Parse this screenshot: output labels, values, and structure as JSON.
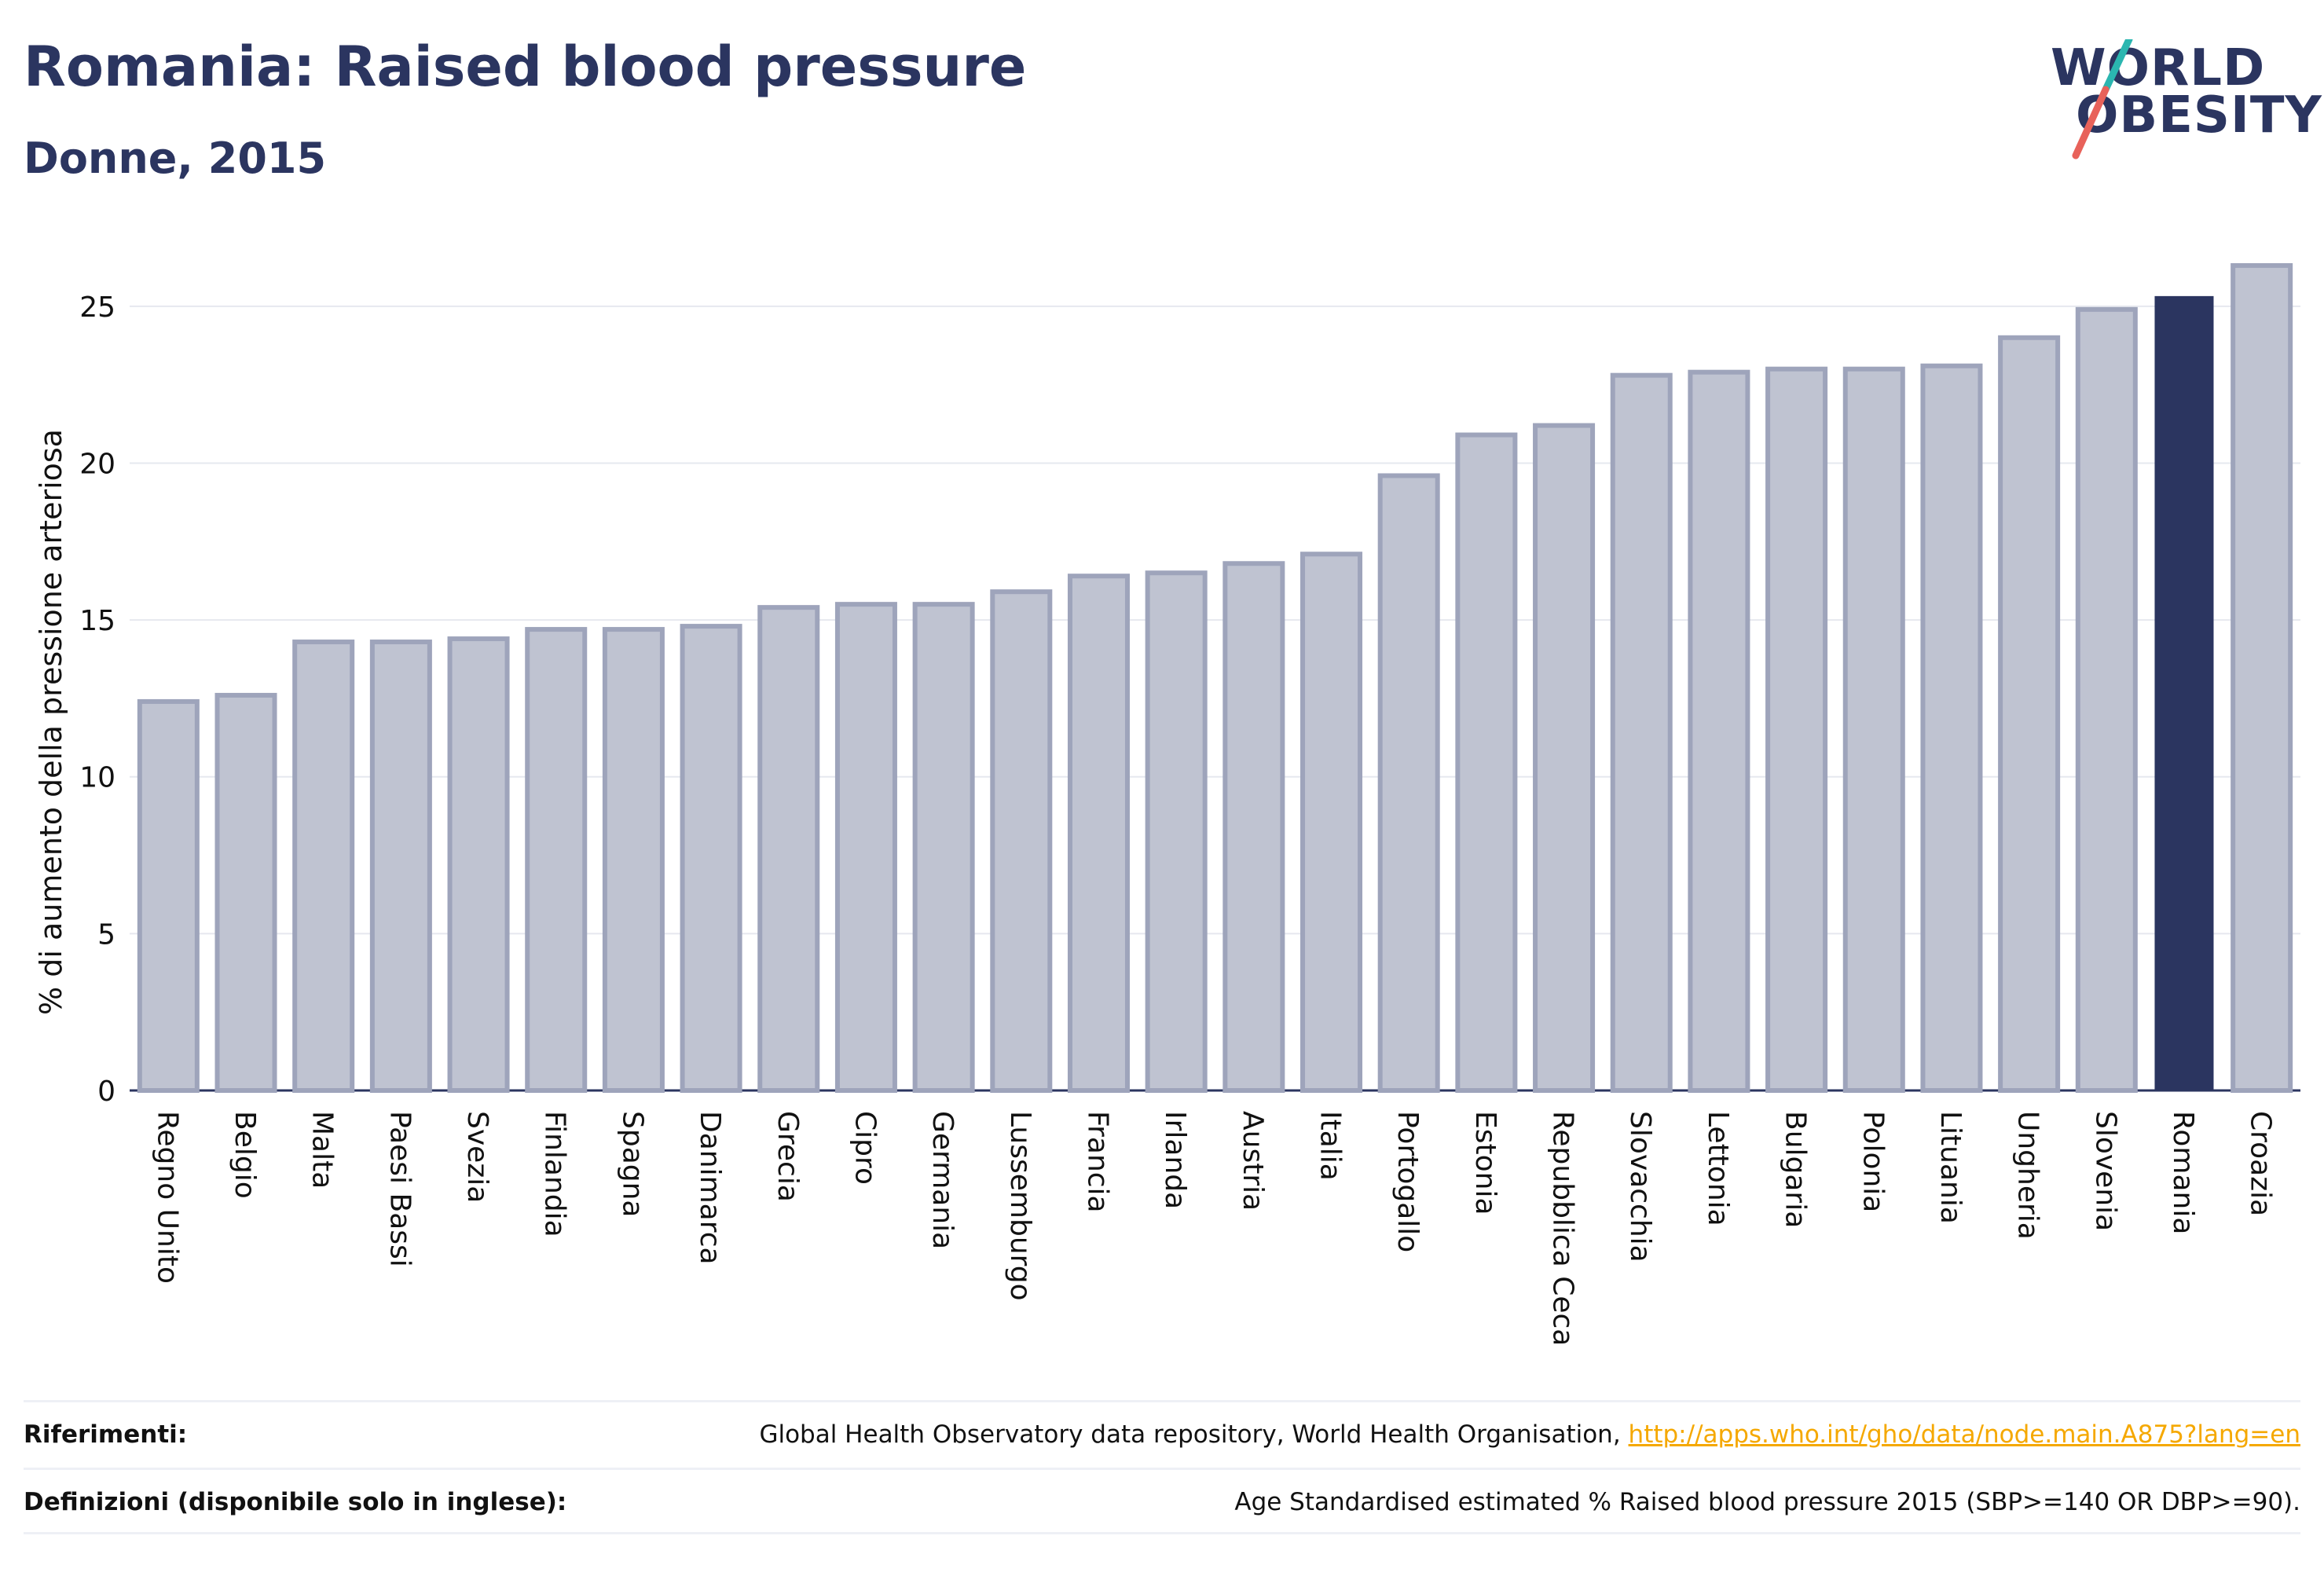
{
  "header": {
    "title": "Romania: Raised blood pressure",
    "subtitle": "Donne, 2015"
  },
  "logo": {
    "line1": "WORLD",
    "line2": "OBESITY",
    "slash_colors": [
      "#2bb6b0",
      "#e8625a"
    ]
  },
  "colors": {
    "bar": "#bfc3d1",
    "bar_border": "#9ea4bb",
    "highlight": "#2b3560",
    "grid": "#e6e8ef",
    "axis": "#2b3560",
    "text": "#111111"
  },
  "chart_data": {
    "type": "bar",
    "title": "Romania: Raised blood pressure",
    "subtitle": "Donne, 2015",
    "xlabel": "",
    "ylabel": "% di aumento della pressione arteriosa",
    "ylim": [
      0,
      27
    ],
    "yticks": [
      0,
      5,
      10,
      15,
      20,
      25
    ],
    "grid": true,
    "highlight": "Romania",
    "categories": [
      "Regno Unito",
      "Belgio",
      "Malta",
      "Paesi Bassi",
      "Svezia",
      "Finlandia",
      "Spagna",
      "Danimarca",
      "Grecia",
      "Cipro",
      "Germania",
      "Lussemburgo",
      "Francia",
      "Irlanda",
      "Austria",
      "Italia",
      "Portogallo",
      "Estonia",
      "Repubblica Ceca",
      "Slovacchia",
      "Lettonia",
      "Bulgaria",
      "Polonia",
      "Lituania",
      "Ungheria",
      "Slovenia",
      "Romania",
      "Croazia"
    ],
    "values": [
      12.4,
      12.6,
      14.3,
      14.3,
      14.4,
      14.7,
      14.7,
      14.8,
      15.4,
      15.5,
      15.5,
      15.9,
      16.4,
      16.5,
      16.8,
      17.1,
      19.6,
      20.9,
      21.2,
      22.8,
      22.9,
      23.0,
      23.0,
      23.1,
      24.0,
      24.9,
      25.3,
      26.3
    ]
  },
  "footer": {
    "references_label": "Riferimenti:",
    "references_text": "Global Health Observatory data repository, World Health Organisation, ",
    "references_link": "http://apps.who.int/gho/data/node.main.A875?lang=en",
    "definitions_label": "Definizioni (disponibile solo in inglese):",
    "definitions_text": "Age Standardised estimated % Raised blood pressure 2015 (SBP>=140 OR DBP>=90)."
  }
}
